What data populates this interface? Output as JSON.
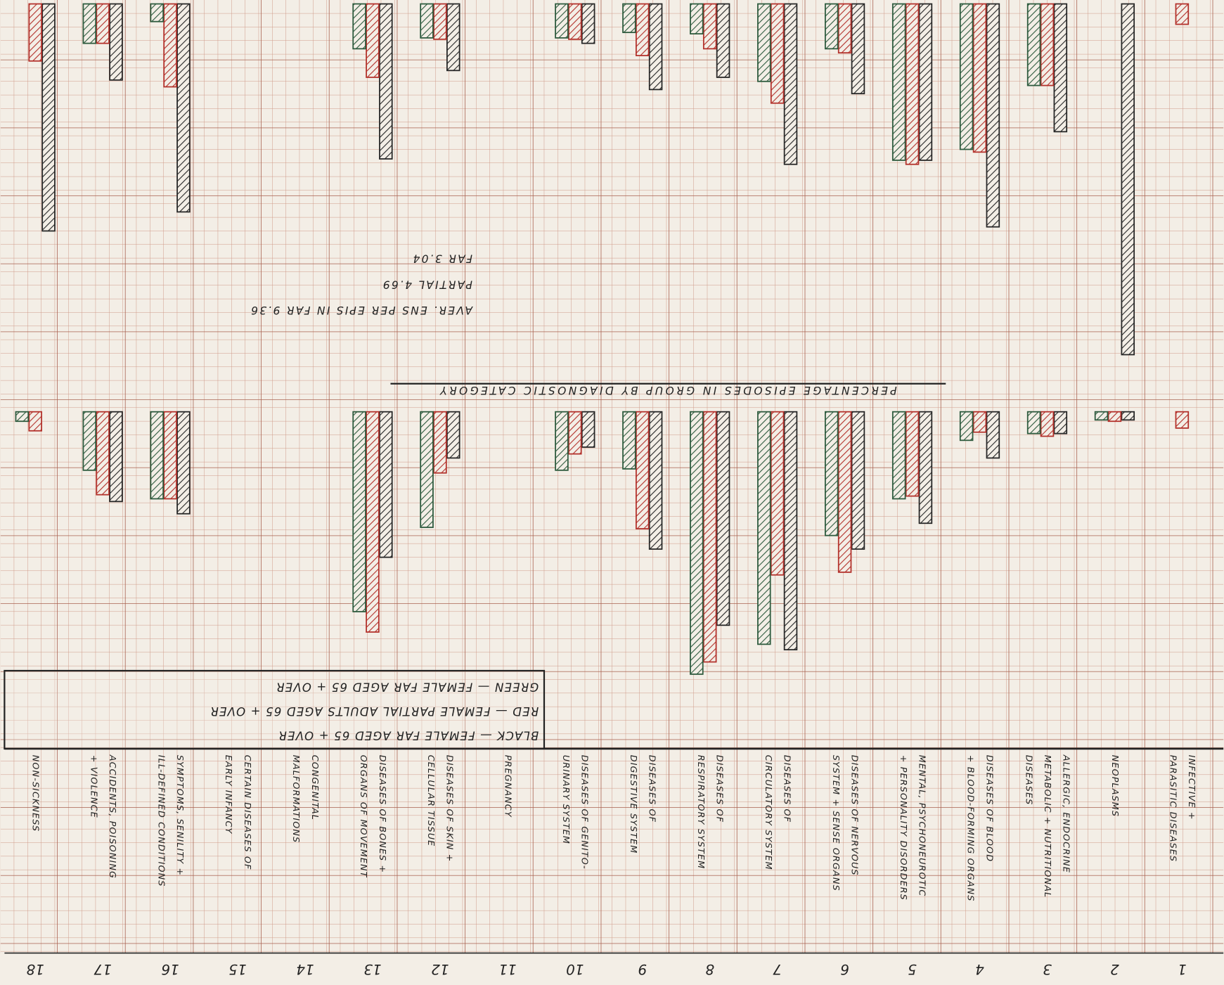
{
  "chart_data": {
    "type": "bar",
    "title": "PERCENTAGE EPISODES IN GROUP BY DIAGNOSTIC CATEGORY",
    "notes": [
      "AVER. ENS PER EPIS IN FAR 9.36",
      "PARTIAL 4.69",
      "FAR 3.04"
    ],
    "categories": [
      "1",
      "2",
      "3",
      "4",
      "5",
      "6",
      "7",
      "8",
      "9",
      "10",
      "11",
      "12",
      "13",
      "14",
      "15",
      "16",
      "17",
      "18"
    ],
    "category_labels": [
      [
        "INFECTIVE +",
        "PARASITIC DISEASES"
      ],
      [
        "NEOPLASMS"
      ],
      [
        "ALLERGIC, ENDOCRINE",
        "METABOLIC + NUTRITIONAL",
        "DISEASES"
      ],
      [
        "DISEASES OF BLOOD",
        "+ BLOOD-FORMING ORGANS"
      ],
      [
        "MENTAL, PSYCHONEUROTIC",
        "+ PERSONALITY DISORDERS"
      ],
      [
        "DISEASES OF NERVOUS",
        "SYSTEM + SENSE ORGANS"
      ],
      [
        "DISEASES OF",
        "CIRCULATORY SYSTEM"
      ],
      [
        "DISEASES OF",
        "RESPIRATORY SYSTEM"
      ],
      [
        "DISEASES OF",
        "DIGESTIVE SYSTEM"
      ],
      [
        "DISEASES OF GENITO-",
        "URINARY SYSTEM"
      ],
      [
        "PREGNANCY"
      ],
      [
        "DISEASES OF SKIN +",
        "CELLULAR TISSUE"
      ],
      [
        "DISEASES OF BONES +",
        "ORGANS OF MOVEMENT"
      ],
      [
        "CONGENITAL",
        "MALFORMATIONS"
      ],
      [
        "CERTAIN DISEASES OF",
        "EARLY INFANCY"
      ],
      [
        "SYMPTOMS, SENILITY +",
        "ILL-DEFINED CONDITIONS"
      ],
      [
        "ACCIDENTS, POISONING",
        "+ VIOLENCE"
      ],
      [
        "NON-SICKNESS"
      ]
    ],
    "ylim": [
      0,
      30
    ],
    "series": [
      {
        "name": "BLACK — FEMALE FAR AGED 65 + OVER",
        "color": "#262626",
        "values": [
          null,
          0.6,
          1.6,
          3.4,
          8.2,
          10.1,
          17.5,
          15.7,
          10.1,
          2.6,
          null,
          3.4,
          10.7,
          null,
          null,
          7.5,
          6.6,
          null
        ],
        "values_upper": [
          null,
          25.8,
          9.4,
          16.4,
          11.5,
          6.6,
          11.8,
          5.4,
          6.3,
          2.9,
          null,
          4.9,
          11.4,
          null,
          null,
          15.3,
          5.6,
          16.7
        ]
      },
      {
        "name": "RED — FEMALE PARTIAL ADULTS AGED 65 + OVER",
        "color": "#b3312b",
        "values": [
          1.2,
          0.7,
          1.8,
          1.5,
          6.2,
          11.8,
          12.0,
          18.4,
          8.6,
          3.1,
          null,
          4.5,
          16.2,
          null,
          null,
          6.4,
          6.1,
          1.4
        ],
        "values_upper": [
          1.5,
          null,
          6.0,
          10.9,
          11.8,
          3.6,
          7.3,
          3.3,
          3.8,
          2.6,
          null,
          2.6,
          5.4,
          null,
          null,
          6.1,
          2.9,
          4.2
        ]
      },
      {
        "name": "GREEN — FEMALE FAR AGED 65 + OVER",
        "color": "#2d5a3d",
        "values": [
          null,
          0.6,
          1.6,
          2.1,
          6.4,
          9.1,
          17.1,
          19.3,
          4.2,
          4.3,
          null,
          8.5,
          14.7,
          null,
          null,
          6.4,
          4.3,
          0.7
        ],
        "values_upper": [
          null,
          null,
          6.0,
          10.7,
          11.5,
          3.3,
          5.7,
          2.2,
          2.1,
          2.5,
          null,
          2.5,
          3.3,
          null,
          null,
          1.3,
          2.9,
          null
        ]
      }
    ]
  }
}
